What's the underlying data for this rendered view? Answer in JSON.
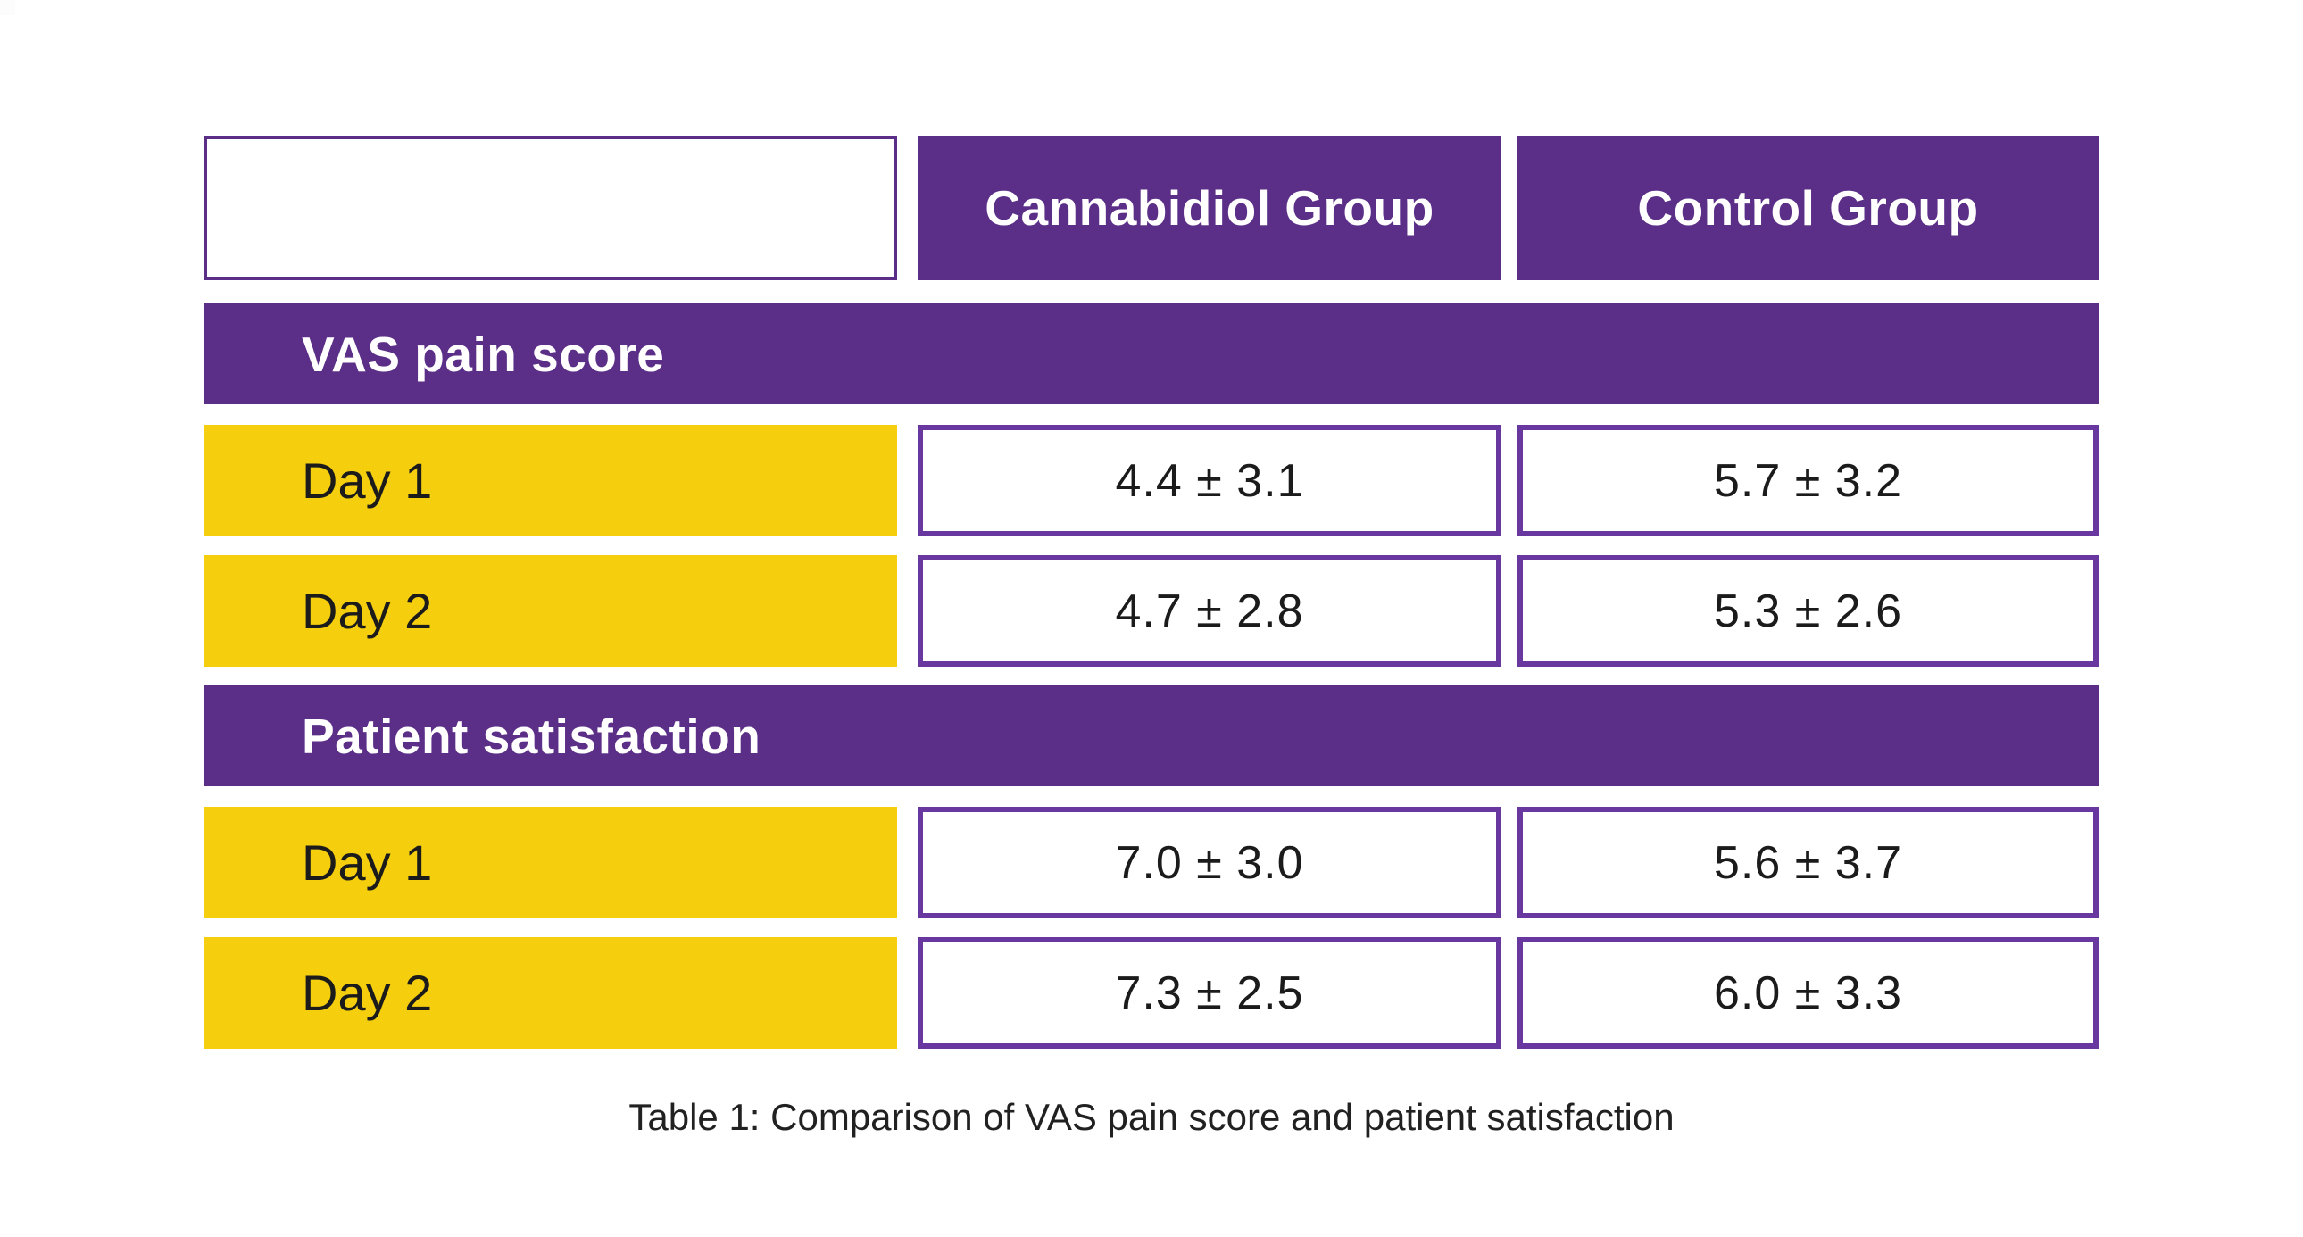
{
  "page": {
    "background": "#ffffff",
    "caption": "Table 1: Comparison of VAS pain score and patient satisfaction"
  },
  "table": {
    "header": {
      "row_label_cell": "",
      "columns": [
        "Cannabidiol Group",
        "Control Group"
      ]
    },
    "sections": [
      {
        "title": "VAS pain score",
        "rows": [
          {
            "label": "Day 1",
            "values": [
              "4.4 ± 3.1",
              "5.7 ± 3.2"
            ]
          },
          {
            "label": "Day 2",
            "values": [
              "4.7 ± 2.8",
              "5.3 ± 2.6"
            ]
          }
        ]
      },
      {
        "title": "Patient satisfaction",
        "rows": [
          {
            "label": "Day 1",
            "values": [
              "7.0 ± 3.0",
              "5.6 ± 3.7"
            ]
          },
          {
            "label": "Day 2",
            "values": [
              "7.3 ± 2.5",
              "6.0 ± 3.3"
            ]
          }
        ]
      }
    ]
  },
  "colors": {
    "header_purple": "#5b2e87",
    "value_border_purple": "#6838a0",
    "row_label_yellow": "#f5ce0e",
    "text_dark": "#1b1b1b",
    "text_light": "#ffffff"
  },
  "chart_data": {
    "type": "table",
    "title": "Table 1: Comparison of VAS pain score and patient satisfaction",
    "columns": [
      "",
      "Cannabidiol Group",
      "Control Group"
    ],
    "sections": [
      {
        "section": "VAS pain score",
        "rows": [
          [
            "Day 1",
            "4.4 ± 3.1",
            "5.7 ± 3.2"
          ],
          [
            "Day 2",
            "4.7 ± 2.8",
            "5.3 ± 2.6"
          ]
        ]
      },
      {
        "section": "Patient satisfaction",
        "rows": [
          [
            "Day 1",
            "7.0 ± 3.0",
            "5.6 ± 3.7"
          ],
          [
            "Day 2",
            "7.3 ± 2.5",
            "6.0 ± 3.3"
          ]
        ]
      }
    ]
  }
}
